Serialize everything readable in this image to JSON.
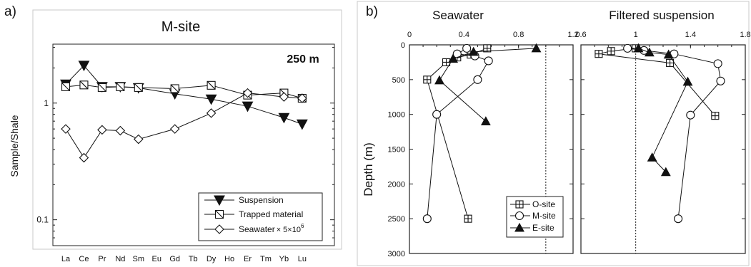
{
  "chart_data": [
    {
      "panel_label": "a)",
      "type": "line",
      "title": "M-site",
      "annotation": "250 m",
      "xlabel": "",
      "ylabel": "Sample/Shale",
      "y_scale": "log",
      "ylim": [
        0.06,
        3.2
      ],
      "y_ticks": [
        "1",
        "0.1"
      ],
      "categories": [
        "La",
        "Ce",
        "Pr",
        "Nd",
        "Sm",
        "Eu",
        "Gd",
        "Tb",
        "Dy",
        "Ho",
        "Er",
        "Tm",
        "Yb",
        "Lu"
      ],
      "series": [
        {
          "name": "Suspension",
          "marker": "filled-down-triangle",
          "points": [
            [
              "La",
              1.45
            ],
            [
              "Ce",
              2.1
            ],
            [
              "Pr",
              1.38
            ],
            [
              "Nd",
              1.38
            ],
            [
              "Sm",
              1.35
            ],
            [
              "Gd",
              1.2
            ],
            [
              "Dy",
              1.08
            ],
            [
              "Er",
              0.94
            ],
            [
              "Yb",
              0.75
            ],
            [
              "Lu",
              0.66
            ]
          ]
        },
        {
          "name": "Trapped material",
          "marker": "hatched-square",
          "points": [
            [
              "La",
              1.38
            ],
            [
              "Ce",
              1.43
            ],
            [
              "Pr",
              1.36
            ],
            [
              "Nd",
              1.38
            ],
            [
              "Sm",
              1.36
            ],
            [
              "Gd",
              1.33
            ],
            [
              "Dy",
              1.42
            ],
            [
              "Er",
              1.17
            ],
            [
              "Yb",
              1.22
            ],
            [
              "Lu",
              1.1
            ]
          ]
        },
        {
          "name": "Seawater",
          "name_suffix": "× 5×10",
          "name_sup": "6",
          "marker": "open-diamond",
          "points": [
            [
              "La",
              0.6
            ],
            [
              "Ce",
              0.34
            ],
            [
              "Pr",
              0.59
            ],
            [
              "Nd",
              0.58
            ],
            [
              "Sm",
              0.49
            ],
            [
              "Gd",
              0.6
            ],
            [
              "Dy",
              0.82
            ],
            [
              "Er",
              1.22
            ],
            [
              "Yb",
              1.13
            ],
            [
              "Lu",
              1.1
            ]
          ]
        }
      ],
      "legend_position": "bottom-right"
    },
    {
      "panel_label": "b)",
      "type": "line",
      "ylabel": "Depth (m)",
      "y_reversed": true,
      "ylim": [
        0,
        3000
      ],
      "y_ticks": [
        "0",
        "500",
        "1000",
        "1500",
        "2000",
        "2500",
        "3000"
      ],
      "legend": [
        "O-site",
        "M-site",
        "E-site"
      ],
      "legend_markers": [
        "boxed-plus",
        "open-circle",
        "filled-up-triangle"
      ],
      "legend_position": "bottom-left",
      "panels": [
        {
          "title": "Seawater",
          "xlim": [
            0,
            1.2
          ],
          "x_ticks": [
            "0",
            "0.4",
            "0.8",
            "1.2"
          ],
          "reference_line": 1.0,
          "series": [
            {
              "name": "O-site",
              "points": [
                [
                  0.57,
                  50
                ],
                [
                  0.45,
                  140
                ],
                [
                  0.35,
                  180
                ],
                [
                  0.27,
                  250
                ],
                [
                  0.13,
                  500
                ],
                [
                  0.43,
                  2500
                ]
              ]
            },
            {
              "name": "M-site",
              "points": [
                [
                  0.42,
                  50
                ],
                [
                  0.35,
                  130
                ],
                [
                  0.48,
                  160
                ],
                [
                  0.58,
                  230
                ],
                [
                  0.5,
                  500
                ],
                [
                  0.2,
                  1000
                ],
                [
                  0.13,
                  2500
                ]
              ]
            },
            {
              "name": "E-site",
              "points": [
                [
                  0.93,
                  50
                ],
                [
                  0.47,
                  100
                ],
                [
                  0.32,
                  200
                ],
                [
                  0.22,
                  510
                ],
                [
                  0.56,
                  1100
                ]
              ]
            }
          ]
        },
        {
          "title": "Filtered suspension",
          "xlim": [
            0.6,
            1.8
          ],
          "x_ticks": [
            "0.6",
            "1",
            "1.4",
            "1.8"
          ],
          "reference_line": 1.0,
          "series": [
            {
              "name": "O-site",
              "points": [
                [
                  1.0,
                  50
                ],
                [
                  0.82,
                  90
                ],
                [
                  0.73,
                  130
                ],
                [
                  1.25,
                  260
                ],
                [
                  1.58,
                  1020
                ]
              ]
            },
            {
              "name": "M-site",
              "points": [
                [
                  0.94,
                  50
                ],
                [
                  1.06,
                  80
                ],
                [
                  1.28,
                  130
                ],
                [
                  1.6,
                  270
                ],
                [
                  1.62,
                  520
                ],
                [
                  1.4,
                  1010
                ],
                [
                  1.31,
                  2500
                ]
              ]
            },
            {
              "name": "E-site",
              "points": [
                [
                  1.02,
                  50
                ],
                [
                  1.1,
                  110
                ],
                [
                  1.24,
                  140
                ],
                [
                  1.38,
                  530
                ],
                [
                  1.12,
                  1620
                ],
                [
                  1.22,
                  1830
                ]
              ]
            }
          ]
        }
      ]
    }
  ]
}
